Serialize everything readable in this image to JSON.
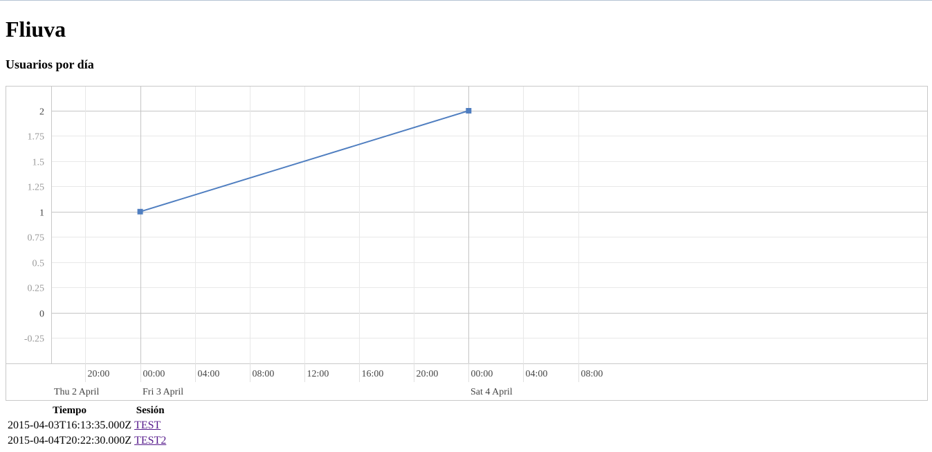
{
  "page": {
    "title": "Fliuva",
    "chart_heading": "Usuarios por día"
  },
  "chart_data": {
    "type": "line",
    "title": "Usuarios por día",
    "xlabel": "",
    "ylabel": "",
    "x_axis_type": "datetime",
    "xlim": [
      "2015-04-02T17:30:00",
      "2015-04-05T09:30:00"
    ],
    "ylim": [
      -0.5,
      2.25
    ],
    "y_ticks": [
      2,
      1.75,
      1.5,
      1.25,
      1,
      0.75,
      0.5,
      0.25,
      0,
      -0.25
    ],
    "y_major_ticks": [
      2,
      1,
      0
    ],
    "x_tick_labels": [
      {
        "t": "2015-04-02T20:00:00",
        "label": "20:00"
      },
      {
        "t": "2015-04-03T00:00:00",
        "label": "00:00"
      },
      {
        "t": "2015-04-03T04:00:00",
        "label": "04:00"
      },
      {
        "t": "2015-04-03T08:00:00",
        "label": "08:00"
      },
      {
        "t": "2015-04-03T12:00:00",
        "label": "12:00"
      },
      {
        "t": "2015-04-03T16:00:00",
        "label": "16:00"
      },
      {
        "t": "2015-04-03T20:00:00",
        "label": "20:00"
      },
      {
        "t": "2015-04-04T00:00:00",
        "label": "00:00"
      },
      {
        "t": "2015-04-04T04:00:00",
        "label": "04:00"
      },
      {
        "t": "2015-04-04T08:00:00",
        "label": "08:00"
      }
    ],
    "x_date_labels": [
      {
        "t": "2015-04-02T17:30:00",
        "label": "Thu 2 April"
      },
      {
        "t": "2015-04-03T00:00:00",
        "label": "Fri 3 April"
      },
      {
        "t": "2015-04-04T00:00:00",
        "label": "Sat 4 April"
      }
    ],
    "grid": true,
    "legend": "none",
    "series": [
      {
        "color": "#4f7ec0",
        "marker": "square",
        "points": [
          {
            "x": "2015-04-03T00:00:00",
            "y": 1
          },
          {
            "x": "2015-04-04T00:00:00",
            "y": 2
          }
        ]
      }
    ]
  },
  "table": {
    "headers": [
      "Tiempo",
      "Sesión"
    ],
    "rows": [
      {
        "time": "2015-04-03T16:13:35.000Z",
        "session": "TEST"
      },
      {
        "time": "2015-04-04T20:22:30.000Z",
        "session": "TEST2"
      }
    ]
  }
}
